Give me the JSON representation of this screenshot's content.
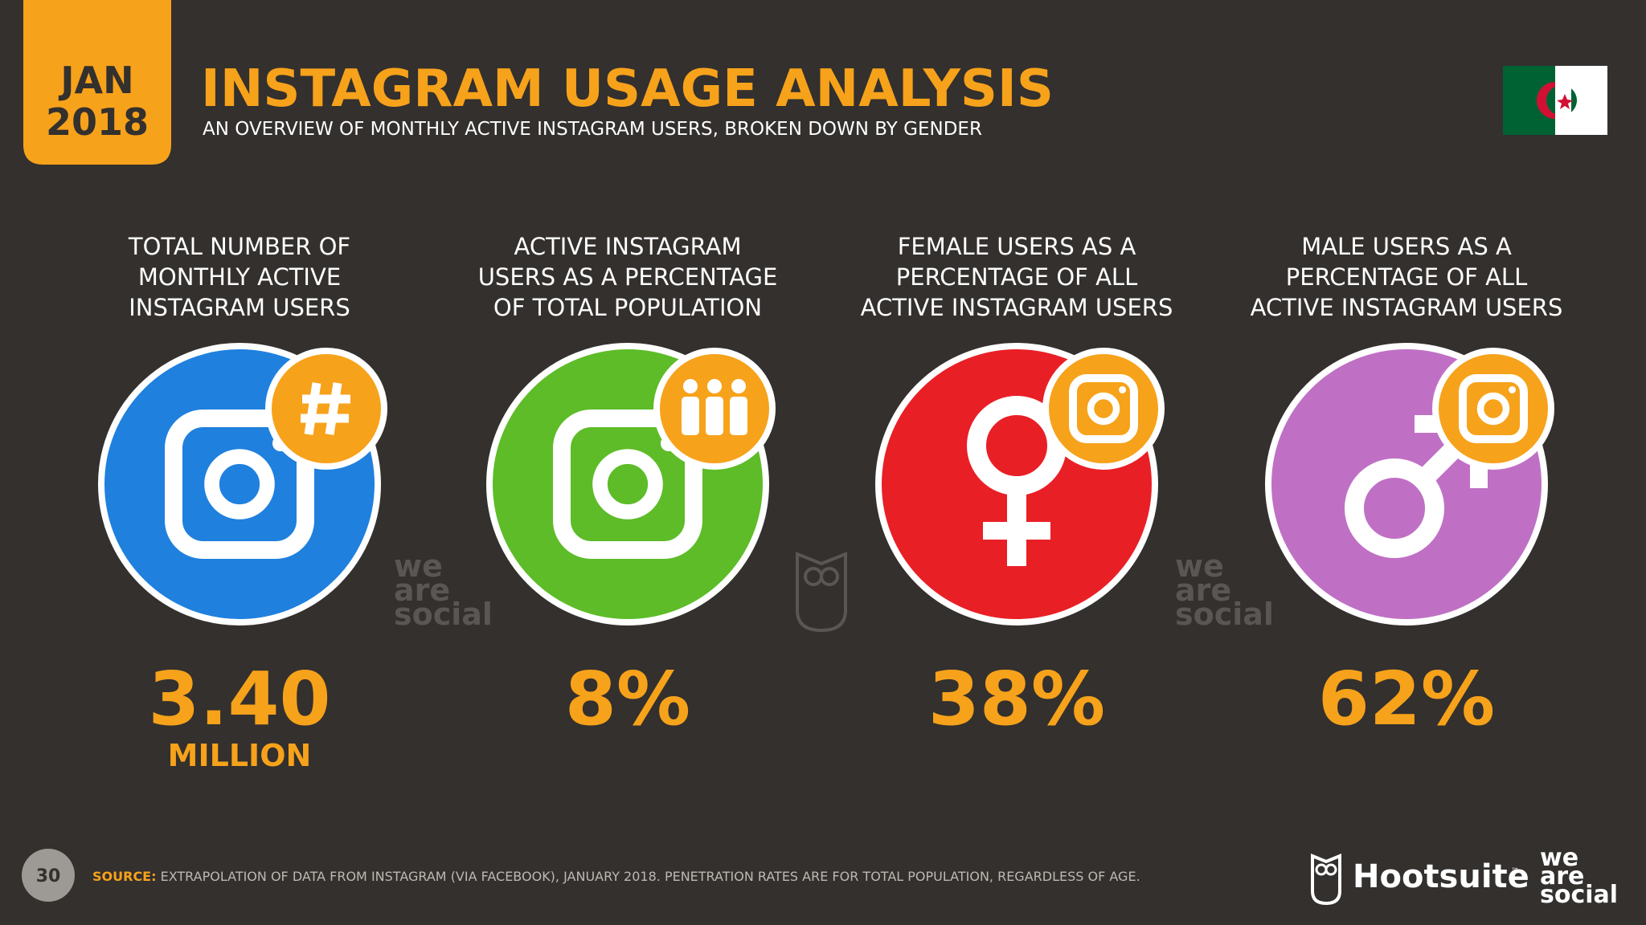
{
  "header": {
    "badge_month": "JAN",
    "badge_year": "2018",
    "title": "INSTAGRAM USAGE ANALYSIS",
    "subtitle": "AN OVERVIEW OF MONTHLY ACTIVE INSTAGRAM USERS, BROKEN DOWN BY GENDER"
  },
  "stats": [
    {
      "label_lines": [
        "TOTAL NUMBER OF",
        "MONTHLY ACTIVE",
        "INSTAGRAM USERS"
      ],
      "value": "3.40",
      "unit": "MILLION"
    },
    {
      "label_lines": [
        "ACTIVE INSTAGRAM",
        "USERS AS A PERCENTAGE",
        "OF TOTAL POPULATION"
      ],
      "value": "8%"
    },
    {
      "label_lines": [
        "FEMALE USERS AS A",
        "PERCENTAGE OF ALL",
        "ACTIVE INSTAGRAM USERS"
      ],
      "value": "38%"
    },
    {
      "label_lines": [
        "MALE USERS AS A",
        "PERCENTAGE OF ALL",
        "ACTIVE INSTAGRAM USERS"
      ],
      "value": "62%"
    }
  ],
  "watermark": [
    "we",
    "are",
    "social"
  ],
  "footer": {
    "page": "30",
    "source_label": "SOURCE:",
    "source_text": "EXTRAPOLATION OF DATA FROM INSTAGRAM (VIA FACEBOOK), JANUARY 2018. PENETRATION RATES ARE FOR TOTAL POPULATION, REGARDLESS OF AGE.",
    "brand": "Hootsuite",
    "brand_mark": "™",
    "partner": [
      "we",
      "are",
      "social"
    ]
  }
}
